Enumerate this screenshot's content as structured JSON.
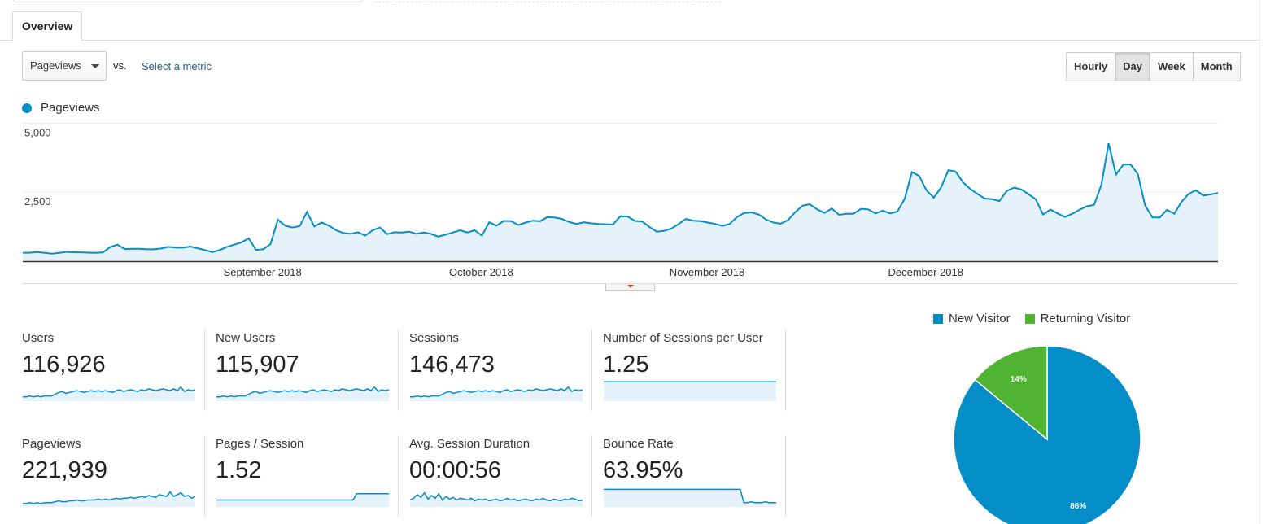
{
  "tabs": {
    "overview": "Overview"
  },
  "controls": {
    "metric": "Pageviews",
    "vs": "vs.",
    "select_metric": "Select a metric",
    "granularity": [
      "Hourly",
      "Day",
      "Week",
      "Month"
    ],
    "active_granularity": "Day"
  },
  "colors": {
    "primary": "#058dc7",
    "secondary": "#50b432",
    "area_fill": "#e6f2fa"
  },
  "chart_data": [
    {
      "type": "area",
      "series": [
        {
          "name": "Pageviews",
          "values": [
            300,
            310,
            330,
            300,
            270,
            300,
            340,
            320,
            320,
            310,
            300,
            320,
            510,
            600,
            440,
            450,
            450,
            430,
            430,
            460,
            520,
            490,
            490,
            530,
            470,
            400,
            330,
            400,
            520,
            600,
            680,
            830,
            410,
            430,
            620,
            1500,
            1290,
            1220,
            1270,
            1780,
            1260,
            1400,
            1290,
            1120,
            1020,
            990,
            1050,
            930,
            1120,
            1220,
            980,
            1050,
            1040,
            1070,
            990,
            1040,
            990,
            890,
            960,
            1040,
            1120,
            1040,
            1120,
            930,
            1410,
            1290,
            1460,
            1450,
            1310,
            1400,
            1470,
            1450,
            1600,
            1580,
            1530,
            1420,
            1350,
            1410,
            1370,
            1350,
            1340,
            1330,
            1630,
            1620,
            1460,
            1440,
            1240,
            1070,
            1100,
            1180,
            1350,
            1530,
            1470,
            1450,
            1400,
            1350,
            1280,
            1350,
            1600,
            1750,
            1770,
            1690,
            1510,
            1400,
            1360,
            1490,
            1780,
            2010,
            2060,
            1880,
            1750,
            1910,
            1680,
            1720,
            1720,
            1900,
            1880,
            1730,
            1830,
            1730,
            1800,
            2250,
            3230,
            3090,
            2570,
            2300,
            2670,
            3300,
            3250,
            2860,
            2620,
            2440,
            2270,
            2250,
            2180,
            2540,
            2670,
            2600,
            2430,
            2240,
            1690,
            1870,
            1730,
            1600,
            1720,
            1860,
            1990,
            2040,
            2770,
            4270,
            3140,
            3500,
            3510,
            3160,
            2030,
            1590,
            1580,
            1860,
            1720,
            2150,
            2450,
            2570,
            2380,
            2420,
            2470
          ]
        }
      ],
      "x_labels": [
        "September 2018",
        "October 2018",
        "November 2018",
        "December 2018"
      ],
      "y_ticks": [
        "5,000",
        "2,500"
      ],
      "ylim": [
        0,
        5000
      ],
      "grid": true,
      "legend": "top-left"
    },
    {
      "type": "pie",
      "legend": "top",
      "slices": [
        {
          "name": "New Visitor",
          "value": 86,
          "label": "86%",
          "color": "#058dc7"
        },
        {
          "name": "Returning Visitor",
          "value": 14,
          "label": "14%",
          "color": "#50b432"
        }
      ]
    }
  ],
  "scorecards": [
    {
      "label": "Users",
      "value": "116,926",
      "spark": [
        3,
        3,
        4,
        3,
        4,
        3,
        4,
        4,
        4,
        6,
        8,
        9,
        7,
        8,
        9,
        10,
        9,
        8,
        9,
        10,
        9,
        10,
        9,
        10,
        9,
        8,
        10,
        11,
        9,
        10,
        11,
        10,
        9,
        11,
        10,
        12,
        11,
        10,
        11,
        12,
        11,
        10,
        12,
        10,
        14,
        9,
        11,
        10,
        11
      ]
    },
    {
      "label": "New Users",
      "value": "115,907",
      "spark": [
        3,
        3,
        4,
        3,
        4,
        3,
        4,
        4,
        4,
        6,
        8,
        9,
        7,
        8,
        9,
        10,
        9,
        8,
        9,
        10,
        9,
        10,
        9,
        10,
        9,
        8,
        10,
        11,
        9,
        10,
        11,
        10,
        9,
        11,
        10,
        12,
        11,
        10,
        11,
        12,
        11,
        10,
        12,
        10,
        14,
        9,
        11,
        10,
        11
      ]
    },
    {
      "label": "Sessions",
      "value": "146,473",
      "spark": [
        3,
        3,
        4,
        3,
        4,
        3,
        4,
        4,
        4,
        6,
        8,
        9,
        7,
        8,
        9,
        10,
        9,
        8,
        9,
        10,
        9,
        10,
        9,
        10,
        9,
        8,
        10,
        11,
        9,
        10,
        11,
        10,
        9,
        11,
        10,
        12,
        11,
        10,
        11,
        12,
        11,
        10,
        12,
        10,
        14,
        9,
        11,
        10,
        11
      ]
    },
    {
      "label": "Number of Sessions per User",
      "value": "1.25",
      "spark": [
        20,
        20,
        20,
        20,
        20,
        20,
        20,
        20,
        20,
        20,
        20,
        20,
        20,
        20,
        20,
        20,
        20,
        20,
        20,
        20,
        20,
        20,
        20,
        20,
        20,
        20,
        20,
        20,
        20,
        20,
        20,
        20,
        20,
        20,
        20,
        20,
        20,
        20,
        20,
        20,
        20,
        20,
        20,
        20,
        20,
        20,
        20,
        20,
        20
      ]
    },
    {
      "label": "Pageviews",
      "value": "221,939",
      "spark": [
        2,
        2,
        3,
        2,
        3,
        2,
        3,
        3,
        3,
        4,
        5,
        4,
        4,
        5,
        5,
        6,
        5,
        5,
        6,
        6,
        6,
        7,
        6,
        7,
        6,
        7,
        8,
        7,
        8,
        8,
        9,
        8,
        9,
        10,
        9,
        11,
        10,
        9,
        12,
        11,
        10,
        15,
        10,
        12,
        14,
        10,
        11,
        8,
        10
      ]
    },
    {
      "label": "Pages / Session",
      "value": "1.52",
      "spark": [
        6,
        6,
        6,
        6,
        6,
        6,
        6,
        6,
        6,
        6,
        6,
        6,
        6,
        6,
        6,
        6,
        6,
        6,
        6,
        6,
        6,
        6,
        6,
        6,
        6,
        6,
        6,
        6,
        6,
        6,
        6,
        6,
        6,
        6,
        6,
        6,
        6,
        6,
        6,
        13,
        13,
        13,
        13,
        13,
        13,
        13,
        13,
        13,
        13
      ]
    },
    {
      "label": "Avg. Session Duration",
      "value": "00:00:56",
      "spark": [
        6,
        8,
        12,
        9,
        14,
        7,
        11,
        8,
        13,
        6,
        10,
        7,
        9,
        6,
        8,
        7,
        6,
        8,
        5,
        7,
        6,
        7,
        5,
        6,
        7,
        5,
        6,
        8,
        6,
        7,
        5,
        6,
        7,
        6,
        5,
        7,
        6,
        8,
        6,
        5,
        7,
        6,
        5,
        7,
        6,
        8,
        7,
        5,
        6
      ]
    },
    {
      "label": "Bounce Rate",
      "value": "63.95%",
      "spark": [
        18,
        18,
        18,
        18,
        18,
        18,
        18,
        18,
        18,
        18,
        18,
        18,
        18,
        18,
        18,
        18,
        18,
        18,
        18,
        18,
        18,
        18,
        18,
        18,
        18,
        18,
        18,
        18,
        18,
        18,
        18,
        18,
        18,
        18,
        18,
        18,
        18,
        18,
        18,
        3,
        3,
        4,
        3,
        3,
        3,
        4,
        3,
        3,
        3
      ]
    }
  ]
}
